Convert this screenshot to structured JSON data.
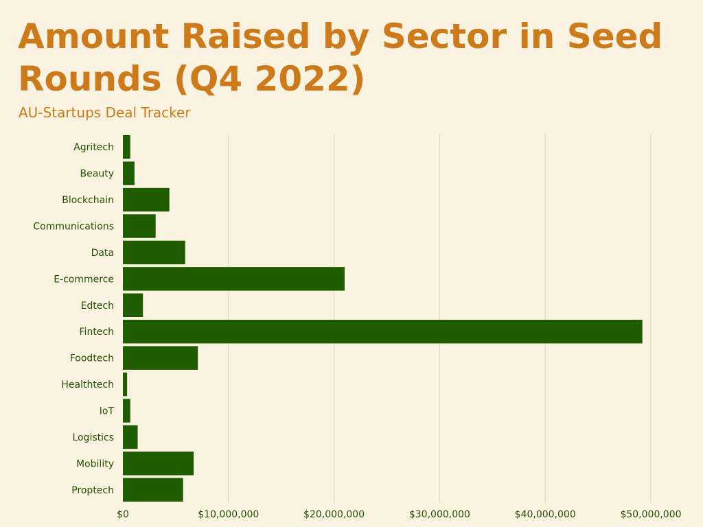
{
  "header": {
    "title": "Amount Raised by Sector in Seed Rounds (Q4 2022)",
    "subtitle": "AU-Startups Deal Tracker"
  },
  "colors": {
    "background": "#FBF3E1",
    "title": "#CD7A1A",
    "bar": "#1F5C00",
    "text": "#1F5200",
    "grid": "#D9D3C3"
  },
  "chart_data": {
    "type": "bar",
    "orientation": "horizontal",
    "title": "Amount Raised by Sector in Seed Rounds (Q4 2022)",
    "subtitle": "AU-Startups Deal Tracker",
    "categories": [
      "Agritech",
      "Beauty",
      "Blockchain",
      "Communications",
      "Data",
      "E-commerce",
      "Edtech",
      "Fintech",
      "Foodtech",
      "Healthtech",
      "IoT",
      "Logistics",
      "Mobility",
      "Proptech"
    ],
    "values": [
      700000,
      1100000,
      4400000,
      3100000,
      5900000,
      21000000,
      1900000,
      49200000,
      7100000,
      400000,
      700000,
      1400000,
      6700000,
      5700000
    ],
    "xlim": [
      0,
      50000000
    ],
    "xticks": [
      0,
      10000000,
      20000000,
      30000000,
      40000000,
      50000000
    ],
    "xtick_labels": [
      "$0",
      "$10,000,000",
      "$20,000,000",
      "$30,000,000",
      "$40,000,000",
      "$50,000,000"
    ],
    "xlabel": "",
    "ylabel": "",
    "grid": "vertical",
    "legend": "none"
  }
}
